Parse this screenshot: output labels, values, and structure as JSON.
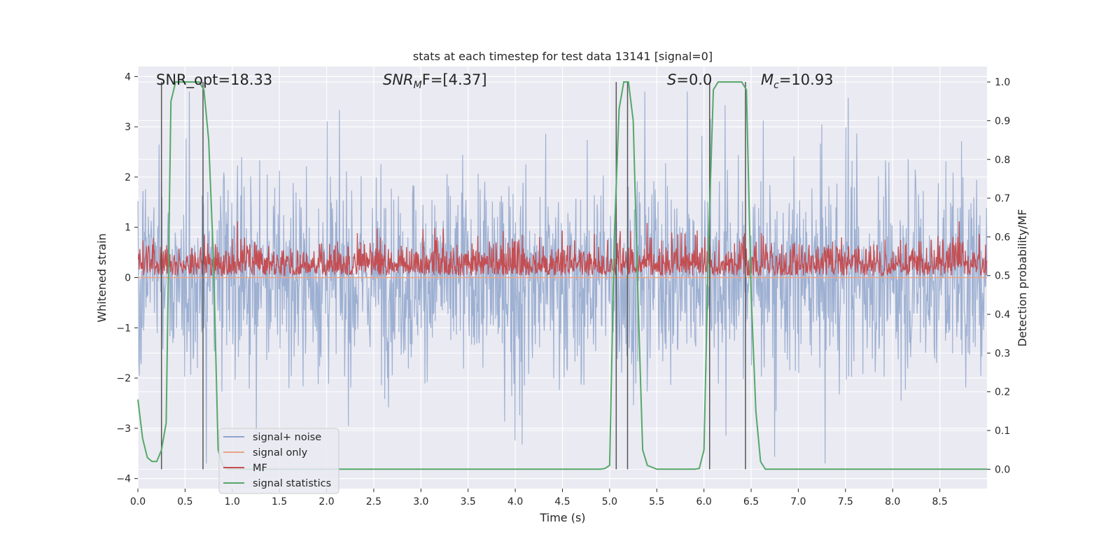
{
  "chart_data": {
    "type": "line",
    "title": "stats at each timestep for test data 13141 [signal=0]",
    "xlabel": "Time (s)",
    "ylabel": "Whitened strain",
    "ylabel_right": "Detection probability/MF",
    "xlim": [
      0.0,
      9.0
    ],
    "ylim": [
      -4.2,
      4.2
    ],
    "ylim_right": [
      -0.05,
      1.04
    ],
    "x_ticks": [
      0.0,
      0.5,
      1.0,
      1.5,
      2.0,
      2.5,
      3.0,
      3.5,
      4.0,
      4.5,
      5.0,
      5.5,
      6.0,
      6.5,
      7.0,
      7.5,
      8.0,
      8.5
    ],
    "x_tick_labels": [
      "0.0",
      "0.5",
      "1.0",
      "1.5",
      "2.0",
      "2.5",
      "3.0",
      "3.5",
      "4.0",
      "4.5",
      "5.0",
      "5.5",
      "6.0",
      "6.5",
      "7.0",
      "7.5",
      "8.0",
      "8.5"
    ],
    "y_ticks": [
      4,
      3,
      2,
      1,
      0,
      -1,
      -2,
      -3,
      -4
    ],
    "y_tick_labels": [
      "4",
      "3",
      "2",
      "1",
      "0",
      "−1",
      "−2",
      "−3",
      "−4"
    ],
    "y2_ticks": [
      1.0,
      0.9,
      0.8,
      0.7,
      0.6,
      0.5,
      0.4,
      0.3,
      0.2,
      0.1,
      0.0
    ],
    "y2_tick_labels": [
      "1.0",
      "0.9",
      "0.8",
      "0.7",
      "0.6",
      "0.5",
      "0.4",
      "0.3",
      "0.2",
      "0.1",
      "0.0"
    ],
    "annotations": {
      "snr_opt": "SNR_opt=18.33",
      "snr_mf_main": "SNR",
      "snr_mf_sub": "M",
      "snr_mf_rest": "F=[4.37]",
      "s_main": "S",
      "s_rest": "=0.0",
      "mc_main": "M",
      "mc_sub": "c",
      "mc_rest": "=10.93"
    },
    "legend_position": "lower-left",
    "series": [
      {
        "name": "signal+ noise",
        "color": "#8fa6cd",
        "axis": "left",
        "noise_sigma": 0.95,
        "samples": 1800
      },
      {
        "name": "signal only",
        "color": "#e8a48a",
        "axis": "left",
        "values": [
          0.0
        ]
      },
      {
        "name": "MF",
        "color": "#c44e52",
        "axis": "right",
        "baseline": 0.52,
        "spread": 0.04,
        "samples": 1800
      },
      {
        "name": "signal statistics",
        "color": "#55a868",
        "axis": "right",
        "x": [
          0.0,
          0.05,
          0.1,
          0.15,
          0.2,
          0.25,
          0.3,
          0.35,
          0.4,
          0.45,
          0.5,
          0.55,
          0.6,
          0.65,
          0.7,
          0.75,
          0.8,
          0.85,
          0.9,
          0.95,
          1.0,
          1.5,
          2.0,
          2.5,
          3.0,
          3.5,
          4.0,
          4.5,
          4.9,
          4.95,
          5.0,
          5.05,
          5.1,
          5.15,
          5.2,
          5.25,
          5.3,
          5.35,
          5.4,
          5.5,
          5.6,
          5.7,
          5.8,
          5.9,
          5.95,
          6.0,
          6.05,
          6.1,
          6.15,
          6.2,
          6.3,
          6.4,
          6.45,
          6.5,
          6.55,
          6.6,
          6.65,
          6.7,
          7.0,
          7.5,
          8.0,
          8.5,
          9.0
        ],
        "values": [
          0.18,
          0.08,
          0.03,
          0.02,
          0.02,
          0.05,
          0.12,
          0.95,
          1.0,
          1.0,
          1.0,
          1.0,
          1.0,
          1.0,
          0.98,
          0.85,
          0.55,
          0.05,
          0.01,
          0.0,
          0.0,
          0.0,
          0.0,
          0.0,
          0.0,
          0.0,
          0.0,
          0.0,
          0.0,
          0.002,
          0.01,
          0.6,
          0.93,
          1.0,
          1.0,
          0.9,
          0.45,
          0.05,
          0.01,
          0.0,
          0.0,
          0.0,
          0.0,
          0.0,
          0.002,
          0.05,
          0.6,
          0.98,
          1.0,
          1.0,
          1.0,
          1.0,
          0.98,
          0.45,
          0.15,
          0.02,
          0.0,
          0.0,
          0.0,
          0.0,
          0.0,
          0.0,
          0.0
        ]
      }
    ],
    "vertical_lines_x": [
      0.25,
      0.69,
      5.07,
      5.19,
      6.06,
      6.44
    ]
  }
}
